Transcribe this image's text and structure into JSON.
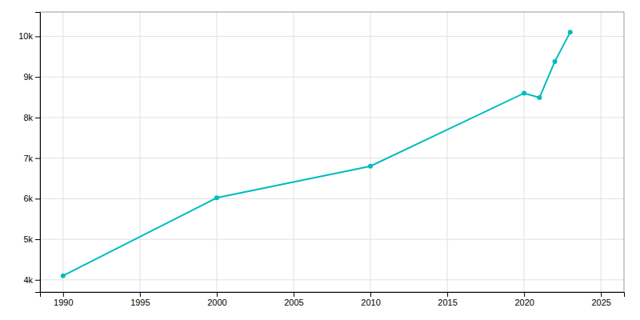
{
  "chart_data": {
    "type": "line",
    "x": [
      1990,
      2000,
      2010,
      2020,
      2021,
      2022,
      2023
    ],
    "values": [
      4100,
      6020,
      6800,
      8600,
      8490,
      9380,
      10100
    ],
    "color": "#00BBBF",
    "marker": "circle",
    "xlim": [
      1988.5,
      2026.5
    ],
    "ylim": [
      3700,
      10600
    ],
    "xticks": [
      1990,
      1995,
      2000,
      2005,
      2010,
      2015,
      2020,
      2025
    ],
    "yticks": [
      {
        "value": 4000,
        "label": "4k"
      },
      {
        "value": 5000,
        "label": "5k"
      },
      {
        "value": 6000,
        "label": "6k"
      },
      {
        "value": 7000,
        "label": "7k"
      },
      {
        "value": 8000,
        "label": "8k"
      },
      {
        "value": 9000,
        "label": "9k"
      },
      {
        "value": 10000,
        "label": "10k"
      }
    ],
    "grid": true
  }
}
